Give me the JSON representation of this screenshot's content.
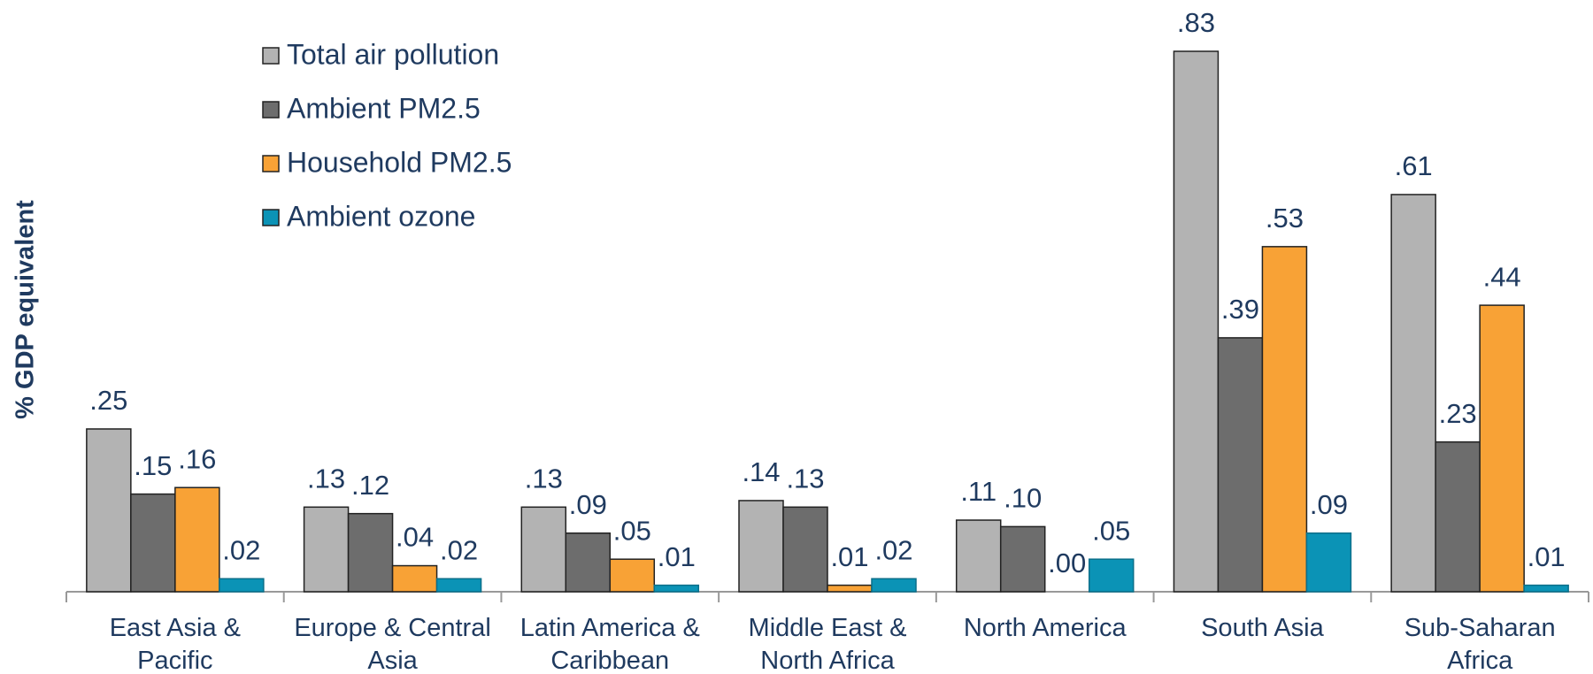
{
  "chart_data": {
    "type": "bar",
    "y_label": "% GDP equivalent",
    "categories": [
      "East Asia &\nPacific",
      "Europe & Central\nAsia",
      "Latin America &\nCaribbean",
      "Middle East &\nNorth Africa",
      "North America",
      "South Asia",
      "Sub-Saharan\nAfrica"
    ],
    "series": [
      {
        "name": "Total air pollution",
        "color": "#b3b3b3",
        "values": [
          0.25,
          0.13,
          0.13,
          0.14,
          0.11,
          0.83,
          0.61
        ],
        "value_labels": [
          ".25",
          ".13",
          ".13",
          ".14",
          ".11",
          ".83",
          ".61"
        ]
      },
      {
        "name": "Ambient PM2.5",
        "color": "#6d6d6d",
        "values": [
          0.15,
          0.12,
          0.09,
          0.13,
          0.1,
          0.39,
          0.23
        ],
        "value_labels": [
          ".15",
          ".12",
          ".09",
          ".13",
          ".10",
          ".39",
          ".23"
        ]
      },
      {
        "name": "Household PM2.5",
        "color": "#f8a236",
        "values": [
          0.16,
          0.04,
          0.05,
          0.01,
          0.0,
          0.53,
          0.44
        ],
        "value_labels": [
          ".16",
          ".04",
          ".05",
          ".01",
          ".00",
          ".53",
          ".44"
        ]
      },
      {
        "name": "Ambient ozone",
        "color": "#0b93b6",
        "values": [
          0.02,
          0.02,
          0.01,
          0.02,
          0.05,
          0.09,
          0.01
        ],
        "value_labels": [
          ".02",
          ".02",
          ".01",
          ".02",
          ".05",
          ".09",
          ".01"
        ]
      }
    ],
    "legend": "upper left"
  }
}
